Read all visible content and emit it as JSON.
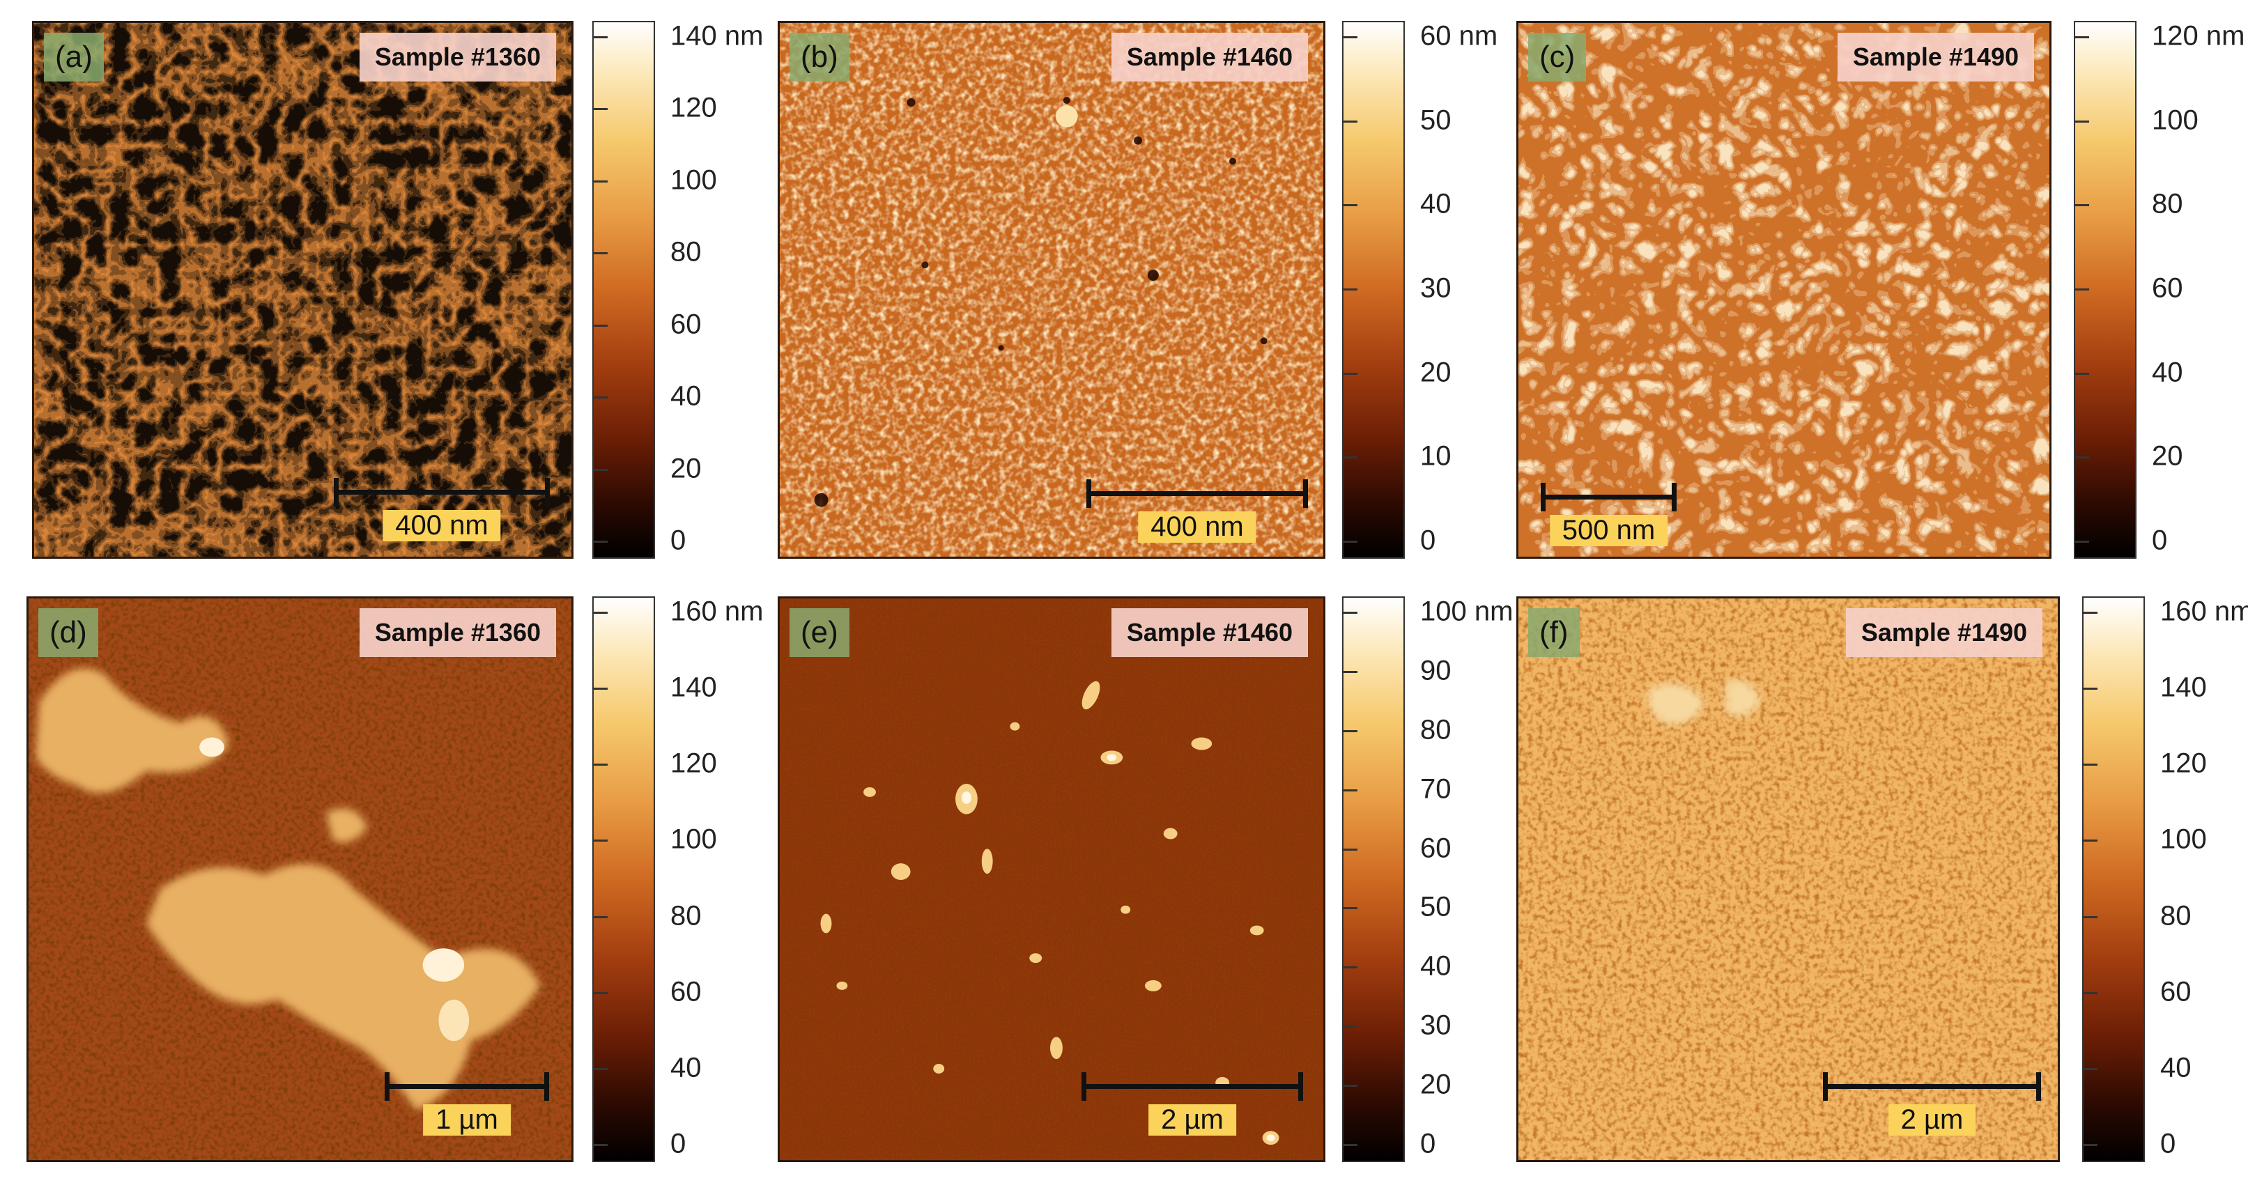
{
  "panels": [
    {
      "letter": "(a)",
      "sample": "Sample #1360",
      "scale": "400 nm",
      "texture": "a",
      "ticks": [
        "140 nm",
        "120",
        "100",
        "80",
        "60",
        "40",
        "20",
        "0"
      ]
    },
    {
      "letter": "(b)",
      "sample": "Sample #1460",
      "scale": "400 nm",
      "texture": "b",
      "ticks": [
        "60 nm",
        "50",
        "40",
        "30",
        "20",
        "10",
        "0"
      ]
    },
    {
      "letter": "(c)",
      "sample": "Sample #1490",
      "scale": "500 nm",
      "texture": "c",
      "ticks": [
        "120 nm",
        "100",
        "80",
        "60",
        "40",
        "20",
        "0"
      ]
    },
    {
      "letter": "(d)",
      "sample": "Sample #1360",
      "scale": "1 µm",
      "texture": "d",
      "ticks": [
        "160 nm",
        "140",
        "120",
        "100",
        "80",
        "60",
        "40",
        "0"
      ]
    },
    {
      "letter": "(e)",
      "sample": "Sample #1460",
      "scale": "2 µm",
      "texture": "e",
      "ticks": [
        "100 nm",
        "90",
        "80",
        "70",
        "60",
        "50",
        "40",
        "30",
        "20",
        "0"
      ]
    },
    {
      "letter": "(f)",
      "sample": "Sample #1490",
      "scale": "2 µm",
      "texture": "f",
      "ticks": [
        "160 nm",
        "140",
        "120",
        "100",
        "80",
        "60",
        "40",
        "0"
      ]
    }
  ]
}
